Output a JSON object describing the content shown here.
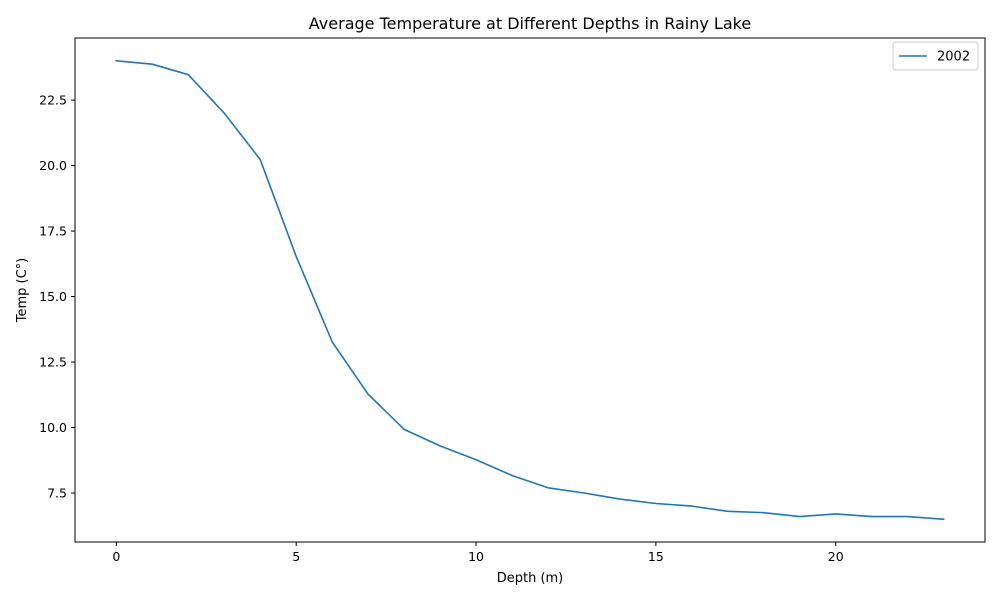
{
  "chart_data": {
    "type": "line",
    "title": "Average Temperature at Different Depths in Rainy Lake",
    "xlabel": "Depth (m)",
    "ylabel": "Temp (C°)",
    "xlim": [
      -1.15,
      24.15
    ],
    "ylim": [
      5.63,
      24.87
    ],
    "xticks": [
      0,
      5,
      10,
      15,
      20
    ],
    "xtick_labels": [
      "0",
      "5",
      "10",
      "15",
      "20"
    ],
    "yticks": [
      7.5,
      10.0,
      12.5,
      15.0,
      17.5,
      20.0,
      22.5
    ],
    "ytick_labels": [
      "7.5",
      "10.0",
      "12.5",
      "15.0",
      "17.5",
      "20.0",
      "22.5"
    ],
    "grid": false,
    "legend_position": "top-right",
    "series": [
      {
        "name": "2002",
        "color": "#1f77b4",
        "x": [
          0,
          1,
          2,
          3,
          4,
          5,
          6,
          7,
          8,
          9,
          10,
          11,
          12,
          13,
          14,
          15,
          16,
          17,
          18,
          19,
          20,
          21,
          22,
          23
        ],
        "y": [
          24.0,
          23.87,
          23.47,
          22.0,
          20.23,
          16.53,
          13.27,
          11.27,
          9.93,
          9.3,
          8.77,
          8.17,
          7.7,
          7.5,
          7.27,
          7.1,
          7.0,
          6.8,
          6.75,
          6.6,
          6.7,
          6.6,
          6.6,
          6.5
        ]
      }
    ]
  }
}
